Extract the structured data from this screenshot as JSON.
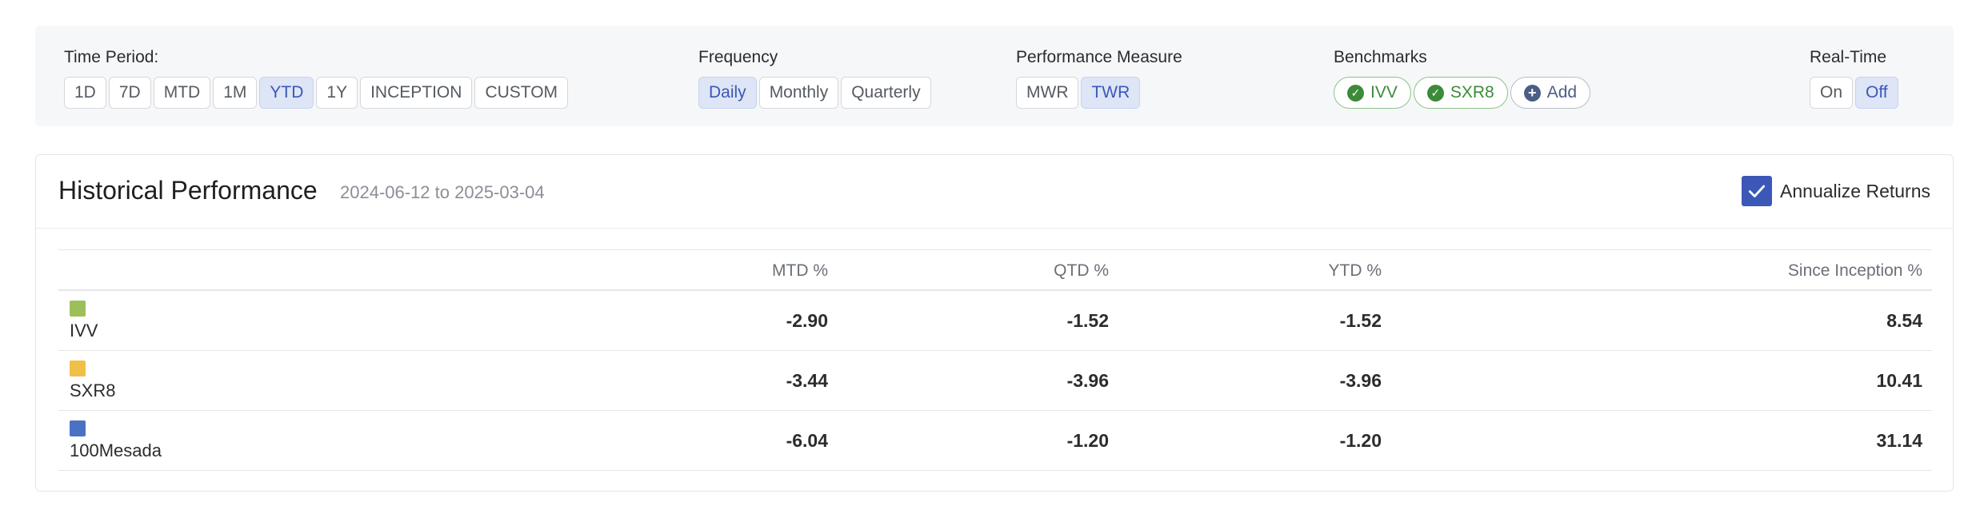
{
  "filters": {
    "time_period": {
      "label": "Time Period:",
      "options": [
        "1D",
        "7D",
        "MTD",
        "1M",
        "YTD",
        "1Y",
        "INCEPTION",
        "CUSTOM"
      ],
      "selected": "YTD"
    },
    "frequency": {
      "label": "Frequency",
      "options": [
        "Daily",
        "Monthly",
        "Quarterly"
      ],
      "selected": "Daily"
    },
    "performance_measure": {
      "label": "Performance Measure",
      "options": [
        "MWR",
        "TWR"
      ],
      "selected": "TWR"
    },
    "benchmarks": {
      "label": "Benchmarks",
      "items": [
        "IVV",
        "SXR8"
      ],
      "add_label": "Add"
    },
    "real_time": {
      "label": "Real-Time",
      "options": [
        "On",
        "Off"
      ],
      "selected": "Off"
    }
  },
  "card": {
    "title": "Historical Performance",
    "date_range": "2024-06-12 to 2025-03-04",
    "annualize_label": "Annualize Returns",
    "annualize_checked": true
  },
  "table": {
    "headers": [
      "MTD %",
      "QTD %",
      "YTD %",
      "Since Inception %"
    ],
    "rows": [
      {
        "name": "IVV",
        "color": "#9dbf5a",
        "mtd": "-2.90",
        "qtd": "-1.52",
        "ytd": "-1.52",
        "since": "8.54"
      },
      {
        "name": "SXR8",
        "color": "#f0bf48",
        "mtd": "-3.44",
        "qtd": "-3.96",
        "ytd": "-3.96",
        "since": "10.41"
      },
      {
        "name": "100Mesada",
        "color": "#4a72c4",
        "mtd": "-6.04",
        "qtd": "-1.20",
        "ytd": "-1.20",
        "since": "31.14"
      }
    ]
  },
  "colors": {
    "accent": "#3b57b8",
    "benchmark_green": "#3c8a3a"
  }
}
